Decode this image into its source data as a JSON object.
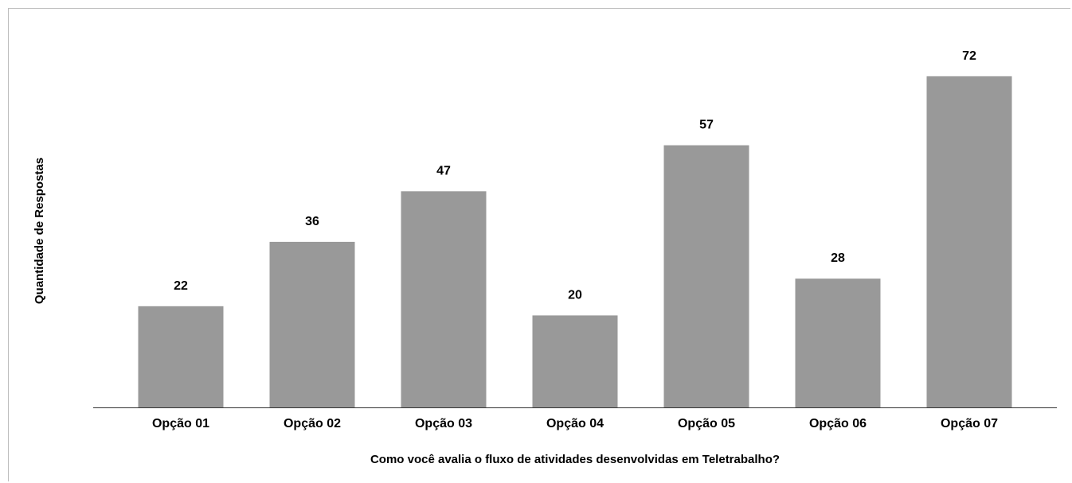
{
  "chart_data": {
    "type": "bar",
    "title": "",
    "xlabel": "Como você avalia o fluxo de atividades desenvolvidas em Teletrabalho?",
    "ylabel": "Quantidade de Respostas",
    "categories": [
      "Opção 01",
      "Opção 02",
      "Opção 03",
      "Opção 04",
      "Opção 05",
      "Opção 06",
      "Opção 07"
    ],
    "values": [
      22,
      36,
      47,
      20,
      57,
      28,
      72
    ],
    "ylim": [
      0,
      80
    ],
    "grid": false,
    "legend": "none",
    "data_labels": true,
    "colors": {
      "bar": "#999999",
      "axis": "#333333",
      "text": "#000000"
    }
  }
}
